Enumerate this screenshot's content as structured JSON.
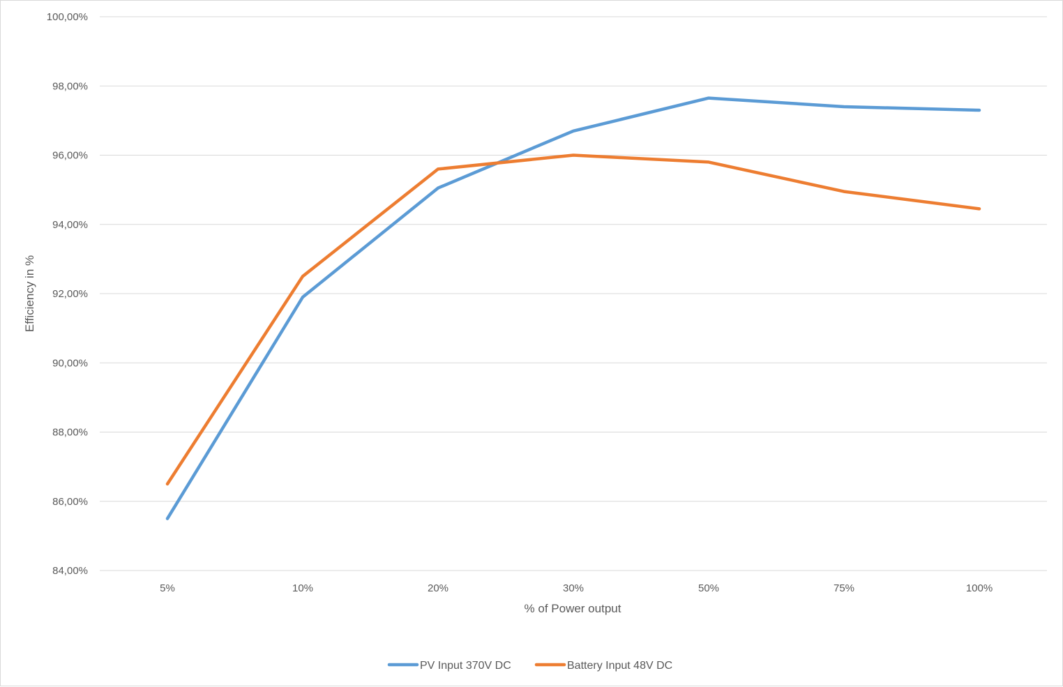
{
  "chart_data": {
    "type": "line",
    "title": "",
    "xlabel": "% of Power output",
    "ylabel": "Efficiency in %",
    "categories": [
      "5%",
      "10%",
      "20%",
      "30%",
      "50%",
      "75%",
      "100%"
    ],
    "ylim": [
      84,
      100
    ],
    "yticks": [
      84,
      86,
      88,
      90,
      92,
      94,
      96,
      98,
      100
    ],
    "ytick_labels": [
      "84,00%",
      "86,00%",
      "88,00%",
      "90,00%",
      "92,00%",
      "94,00%",
      "96,00%",
      "98,00%",
      "100,00%"
    ],
    "grid": "horizontal",
    "legend_position": "bottom",
    "series": [
      {
        "name": "PV Input 370V DC",
        "color": "#5b9bd5",
        "values": [
          85.5,
          91.9,
          95.05,
          96.7,
          97.65,
          97.4,
          97.3
        ]
      },
      {
        "name": "Battery Input 48V DC",
        "color": "#ed7d31",
        "values": [
          86.5,
          92.5,
          95.6,
          96.0,
          95.8,
          94.95,
          94.45
        ]
      }
    ]
  }
}
